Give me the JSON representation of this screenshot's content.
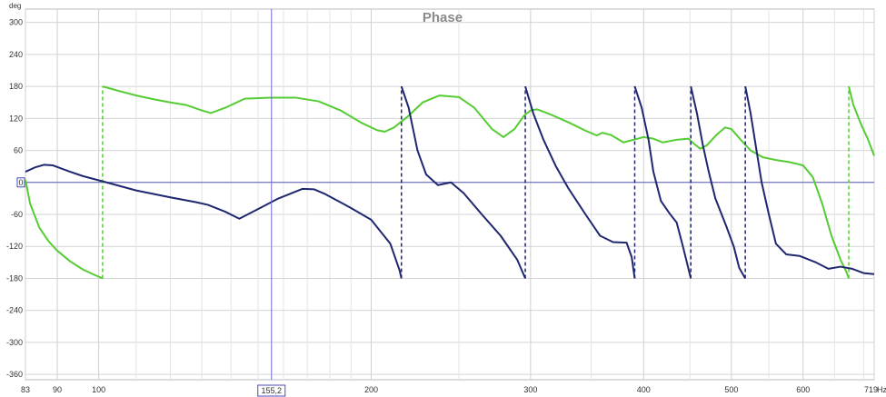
{
  "chart_data": {
    "type": "line",
    "title": "Phase",
    "ylabel": "deg",
    "xunit": "Hz",
    "xscale": "log",
    "xlim": [
      83,
      719
    ],
    "ylim": [
      -370,
      325
    ],
    "grid": true,
    "y_ticks": [
      300,
      240,
      180,
      120,
      60,
      0,
      -60,
      -120,
      -180,
      -240,
      -300,
      -360
    ],
    "x_major_ticks": [
      {
        "value": 83,
        "label": "83"
      },
      {
        "value": 90,
        "label": "90"
      },
      {
        "value": 100,
        "label": "100"
      },
      {
        "value": 200,
        "label": "200"
      },
      {
        "value": 300,
        "label": "300"
      },
      {
        "value": 400,
        "label": "400"
      },
      {
        "value": 500,
        "label": "500"
      },
      {
        "value": 600,
        "label": "600"
      },
      {
        "value": 719,
        "label": "719"
      }
    ],
    "x_minor_ticks": [
      110,
      120,
      130,
      140,
      150,
      160,
      170,
      180,
      190,
      250,
      350,
      450,
      550,
      650,
      700
    ],
    "zero_line": 0,
    "zero_marker_label": "0",
    "cursor": {
      "x": 155.2,
      "label": "155,2"
    },
    "series": [
      {
        "color": "#55cc33",
        "points": [
          [
            83,
            5
          ],
          [
            84,
            -40
          ],
          [
            86,
            -85
          ],
          [
            88,
            -110
          ],
          [
            90,
            -128
          ],
          [
            93,
            -148
          ],
          [
            96,
            -163
          ],
          [
            98.5,
            -172
          ],
          [
            101,
            -180
          ],
          [
            101,
            180
          ],
          [
            105,
            172
          ],
          [
            110,
            163
          ],
          [
            115,
            156
          ],
          [
            120,
            150
          ],
          [
            125,
            145
          ],
          [
            130,
            135
          ],
          [
            133,
            130
          ],
          [
            138,
            140
          ],
          [
            145,
            157
          ],
          [
            155,
            159
          ],
          [
            165,
            159
          ],
          [
            175,
            152
          ],
          [
            185,
            135
          ],
          [
            195,
            112
          ],
          [
            203,
            98
          ],
          [
            207,
            95
          ],
          [
            212,
            103
          ],
          [
            220,
            125
          ],
          [
            228,
            150
          ],
          [
            238,
            163
          ],
          [
            250,
            160
          ],
          [
            260,
            140
          ],
          [
            272,
            100
          ],
          [
            280,
            85
          ],
          [
            288,
            100
          ],
          [
            295,
            125
          ],
          [
            300,
            135
          ],
          [
            305,
            137
          ],
          [
            315,
            128
          ],
          [
            330,
            113
          ],
          [
            345,
            97
          ],
          [
            355,
            88
          ],
          [
            360,
            93
          ],
          [
            368,
            89
          ],
          [
            380,
            75
          ],
          [
            390,
            80
          ],
          [
            400,
            85
          ],
          [
            410,
            82
          ],
          [
            420,
            75
          ],
          [
            435,
            80
          ],
          [
            448,
            82
          ],
          [
            455,
            72
          ],
          [
            462,
            63
          ],
          [
            470,
            70
          ],
          [
            482,
            90
          ],
          [
            492,
            103
          ],
          [
            500,
            100
          ],
          [
            512,
            80
          ],
          [
            525,
            60
          ],
          [
            542,
            47
          ],
          [
            560,
            42
          ],
          [
            580,
            38
          ],
          [
            600,
            32
          ],
          [
            615,
            10
          ],
          [
            630,
            -40
          ],
          [
            645,
            -100
          ],
          [
            660,
            -145
          ],
          [
            670,
            -168
          ],
          [
            674,
            -180
          ],
          [
            674,
            180
          ],
          [
            682,
            145
          ],
          [
            695,
            110
          ],
          [
            708,
            80
          ],
          [
            719,
            50
          ]
        ]
      },
      {
        "color": "#1f2770",
        "points": [
          [
            83,
            20
          ],
          [
            85,
            28
          ],
          [
            87,
            33
          ],
          [
            89,
            32
          ],
          [
            93,
            20
          ],
          [
            96,
            12
          ],
          [
            101,
            2
          ],
          [
            110,
            -15
          ],
          [
            120,
            -28
          ],
          [
            128,
            -37
          ],
          [
            132,
            -42
          ],
          [
            138,
            -55
          ],
          [
            143,
            -68
          ],
          [
            150,
            -50
          ],
          [
            158,
            -30
          ],
          [
            168,
            -12
          ],
          [
            173,
            -13
          ],
          [
            178,
            -22
          ],
          [
            190,
            -48
          ],
          [
            200,
            -70
          ],
          [
            210,
            -115
          ],
          [
            215,
            -165
          ],
          [
            216,
            -180
          ],
          [
            216,
            180
          ],
          [
            220,
            140
          ],
          [
            225,
            60
          ],
          [
            230,
            15
          ],
          [
            237,
            -5
          ],
          [
            245,
            0
          ],
          [
            253,
            -20
          ],
          [
            265,
            -60
          ],
          [
            278,
            -100
          ],
          [
            290,
            -145
          ],
          [
            296,
            -180
          ],
          [
            296,
            180
          ],
          [
            302,
            130
          ],
          [
            310,
            80
          ],
          [
            320,
            30
          ],
          [
            330,
            -10
          ],
          [
            345,
            -60
          ],
          [
            358,
            -100
          ],
          [
            370,
            -112
          ],
          [
            383,
            -113
          ],
          [
            388,
            -140
          ],
          [
            391,
            -180
          ],
          [
            391,
            180
          ],
          [
            398,
            140
          ],
          [
            405,
            80
          ],
          [
            410,
            20
          ],
          [
            418,
            -35
          ],
          [
            428,
            -60
          ],
          [
            435,
            -75
          ],
          [
            442,
            -120
          ],
          [
            451,
            -180
          ],
          [
            451,
            180
          ],
          [
            458,
            130
          ],
          [
            465,
            70
          ],
          [
            472,
            20
          ],
          [
            480,
            -30
          ],
          [
            493,
            -80
          ],
          [
            503,
            -120
          ],
          [
            510,
            -160
          ],
          [
            518,
            -180
          ],
          [
            518,
            180
          ],
          [
            525,
            130
          ],
          [
            533,
            60
          ],
          [
            540,
            0
          ],
          [
            550,
            -60
          ],
          [
            560,
            -115
          ],
          [
            575,
            -135
          ],
          [
            595,
            -138
          ],
          [
            620,
            -150
          ],
          [
            640,
            -162
          ],
          [
            660,
            -158
          ],
          [
            680,
            -162
          ],
          [
            700,
            -170
          ],
          [
            719,
            -172
          ]
        ]
      }
    ]
  }
}
